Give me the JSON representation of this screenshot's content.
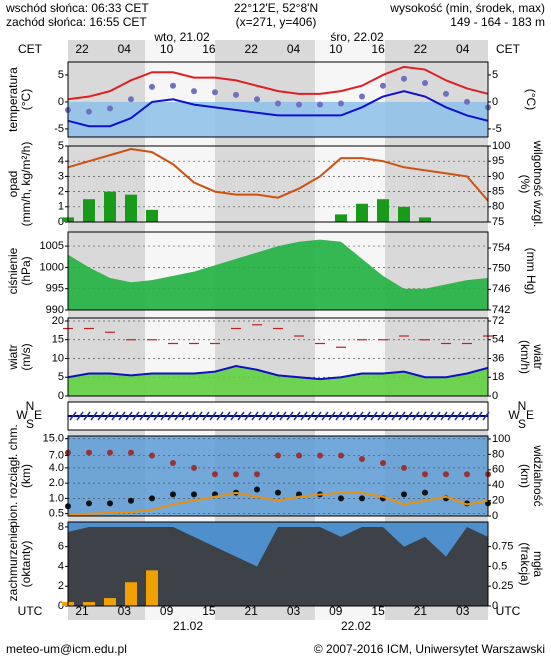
{
  "header": {
    "sunrise": "wschód słońca: 06:33 CET",
    "sunset": "zachód słońca: 16:55 CET",
    "coords": "22°12'E, 52°8'N",
    "grid": "(x=271, y=406)",
    "height_title": "wysokość (min, środek, max)",
    "height_values": "149 - 164 - 183 m"
  },
  "time_axis": {
    "top_zone": "CET",
    "bottom_zone": "UTC",
    "cet_labels": [
      "22",
      "04",
      "10",
      "16",
      "22",
      "04",
      "10",
      "16",
      "22",
      "04"
    ],
    "utc_labels": [
      "21",
      "03",
      "09",
      "15",
      "21",
      "03",
      "09",
      "15",
      "21",
      "03"
    ],
    "top_dates": [
      "wto, 21.02",
      "śro, 22.02"
    ],
    "bottom_dates": [
      "21.02",
      "22.02"
    ]
  },
  "footer": {
    "email": "meteo-um@icm.edu.pl",
    "copyright": "© 2007-2016 ICM, Uniwersytet Warszawski"
  },
  "chart_data": [
    {
      "type": "line",
      "ylabel": [
        "temperatura",
        "(°C)"
      ],
      "y2label": [
        "(°C)"
      ],
      "ylim": [
        -6.5,
        7.4
      ],
      "yticks": [
        -5,
        0,
        5
      ],
      "y2lim": [
        -6.5,
        7.4
      ],
      "y2ticks": [
        -5,
        0,
        5
      ],
      "series": [
        {
          "style": "line",
          "color": "#e02020",
          "values": [
            0.5,
            1,
            2,
            4,
            5.5,
            5.5,
            4.5,
            4.5,
            4,
            3,
            2,
            1.5,
            1.5,
            2,
            3,
            5,
            6.5,
            6,
            4,
            2.5,
            1.5
          ]
        },
        {
          "style": "dots",
          "color": "#7070c0",
          "values": [
            -1.5,
            -1.8,
            -1.2,
            0.5,
            2.8,
            3,
            2,
            1.8,
            1.3,
            0.5,
            -0.3,
            -0.5,
            -0.5,
            -0.3,
            1,
            3,
            4.3,
            3.5,
            1.5,
            0,
            -1
          ]
        },
        {
          "style": "line",
          "color": "#1010d0",
          "values": [
            -3.5,
            -4.5,
            -4.5,
            -3,
            0,
            0.5,
            -0.5,
            -1,
            -1.5,
            -2,
            -2.5,
            -2.5,
            -2.5,
            -2.5,
            -1,
            1,
            2,
            1,
            -1,
            -2.5,
            -3.5
          ]
        }
      ]
    },
    {
      "type": "line",
      "ylabel": [
        "opad",
        "(mm/h, kg/m²/h)"
      ],
      "y2label": [
        "(%)",
        "wilgotność wzgl."
      ],
      "ylim": [
        0,
        5
      ],
      "yticks": [
        0,
        1,
        2,
        3,
        4,
        5
      ],
      "y2lim": [
        75,
        100
      ],
      "y2ticks": [
        75,
        80,
        85,
        90,
        95,
        100
      ],
      "grid": true,
      "series": [
        {
          "style": "bar",
          "color": "#1a9a1a",
          "values": [
            0.3,
            1.5,
            2,
            1.8,
            0.8,
            0,
            0,
            0,
            0,
            0,
            0,
            0,
            0,
            0.5,
            1.2,
            1.5,
            1,
            0.3,
            0,
            0,
            0
          ]
        },
        {
          "style": "line",
          "axis": "y2",
          "color": "#d05010",
          "values": [
            93,
            95,
            97,
            99,
            98,
            94,
            88,
            85,
            84,
            84,
            83,
            86,
            90,
            96,
            96,
            95,
            93,
            92,
            91,
            90,
            82
          ]
        }
      ]
    },
    {
      "type": "area",
      "ylabel": [
        "ciśnienie",
        "(hPa)"
      ],
      "y2label": [
        "(mm Hg)"
      ],
      "ylim": [
        990,
        1008.3
      ],
      "yticks": [
        990,
        995,
        1000,
        1005
      ],
      "y2lim": [
        742,
        757.1
      ],
      "y2ticks": [
        742,
        746,
        750,
        754
      ],
      "grid": true,
      "series": [
        {
          "style": "area",
          "color": "#20b040",
          "values": [
            1003,
            1000,
            997.5,
            996.5,
            997,
            998,
            999,
            1000.5,
            1002,
            1003.5,
            1005,
            1006,
            1006.5,
            1006,
            1002,
            998,
            995,
            995,
            996,
            997,
            997.5
          ]
        }
      ]
    },
    {
      "type": "line",
      "ylabel": [
        "wiatr",
        "(m/s)"
      ],
      "y2label": [
        "(km/h)",
        "wiatr"
      ],
      "ylim": [
        0,
        20.8
      ],
      "yticks": [
        0,
        5,
        10,
        15,
        20
      ],
      "y2lim": [
        0,
        74.9
      ],
      "y2ticks": [
        0,
        18,
        36,
        54,
        72
      ],
      "grid": true,
      "series": [
        {
          "style": "area",
          "color": "#60d040",
          "values": [
            5,
            6,
            6,
            5.5,
            6,
            6,
            6,
            6.5,
            8,
            7,
            5.5,
            5,
            4.5,
            5,
            6,
            6,
            6.5,
            5,
            5,
            6,
            7.5
          ]
        },
        {
          "style": "line",
          "color": "#1010c0",
          "values": [
            5,
            6,
            6,
            5.5,
            6,
            6,
            6,
            6.5,
            8,
            7,
            5.5,
            5,
            4.5,
            5,
            6,
            6,
            6.5,
            5,
            5,
            6,
            7.5
          ]
        },
        {
          "style": "dash",
          "color": "#c02020",
          "values": [
            18,
            18,
            17,
            15,
            15,
            14,
            14,
            14,
            18,
            19,
            18,
            16,
            14,
            13,
            15,
            15,
            16,
            15,
            14,
            14,
            16
          ]
        }
      ]
    },
    {
      "type": "compass",
      "compass": [
        "N",
        "W",
        "E",
        "S"
      ]
    },
    {
      "type": "line",
      "ylabel": [
        "pion. rozciągł. chm.",
        "(km)"
      ],
      "y2label": [
        "(km)",
        "widzialność"
      ],
      "ylog": true,
      "ylim": [
        0.45,
        17
      ],
      "yticks": [
        {
          "value": 0.5,
          "label": "0.5"
        },
        {
          "value": 1,
          "label": "1.0"
        },
        {
          "value": 2,
          "label": "2.0"
        },
        {
          "value": 4,
          "label": "4.0"
        },
        {
          "value": 7,
          "label": "7.0"
        },
        {
          "value": 15,
          "label": "15.0"
        }
      ],
      "y2lim": [
        0,
        103.9
      ],
      "y2ticks": [
        0,
        20,
        40,
        60,
        80,
        100
      ],
      "grid": true,
      "series": [
        {
          "style": "dots",
          "color": "#993333",
          "values": [
            8,
            8,
            8,
            8,
            7,
            5,
            4,
            3,
            3,
            3,
            7,
            7,
            7,
            7,
            6,
            5,
            4,
            3,
            3,
            3,
            3
          ]
        },
        {
          "style": "dots",
          "color": "#111111",
          "values": [
            0.7,
            0.8,
            0.8,
            0.9,
            1,
            1.2,
            1.2,
            1.2,
            1.3,
            1.5,
            1.3,
            1.2,
            1.2,
            1,
            1,
            1,
            1.2,
            1.3,
            1,
            0.8,
            0.8
          ]
        },
        {
          "style": "line",
          "axis": "y2",
          "color": "#e89010",
          "values": [
            2,
            3,
            4,
            5,
            8,
            15,
            20,
            25,
            30,
            25,
            20,
            25,
            28,
            30,
            30,
            25,
            15,
            20,
            25,
            15,
            20
          ]
        }
      ]
    },
    {
      "type": "area",
      "ylabel": [
        "zachmurzenie",
        "(oktanty)"
      ],
      "y2label": [
        "(frakcja)",
        "mgła"
      ],
      "ylim": [
        0,
        8.5
      ],
      "yticks": [
        0,
        2,
        4,
        6,
        8
      ],
      "y2lim": [
        0,
        1.06
      ],
      "y2ticks": [
        0,
        0.25,
        0.5,
        0.75
      ],
      "series": [
        {
          "style": "area",
          "color": "#3a3a3a",
          "values": [
            7.5,
            8,
            8,
            8,
            8,
            8,
            7,
            6,
            5,
            4,
            8,
            8,
            8,
            7,
            8,
            8,
            6,
            7,
            5,
            8,
            7
          ]
        },
        {
          "style": "bar",
          "axis": "y2",
          "color": "#f0a000",
          "values": [
            0.05,
            0.05,
            0.1,
            0.3,
            0.45,
            0,
            0,
            0,
            0,
            0,
            0,
            0,
            0,
            0,
            0,
            0,
            0,
            0,
            0,
            0,
            0
          ]
        }
      ]
    }
  ]
}
